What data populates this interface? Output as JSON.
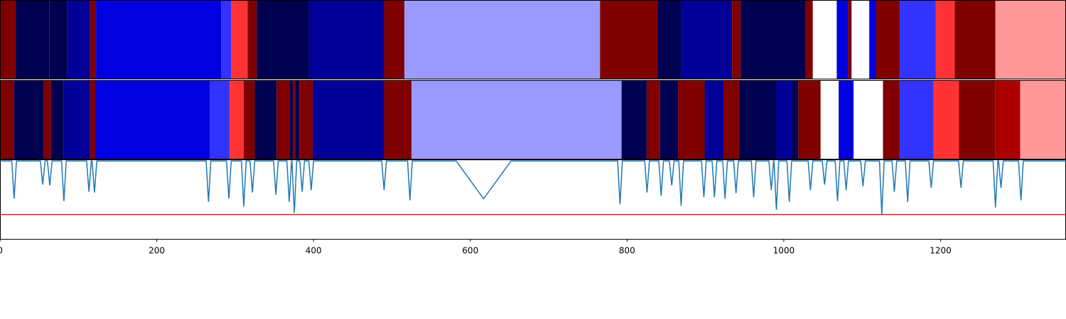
{
  "chart_data": {
    "type": "segments",
    "xlim": [
      0,
      1360
    ],
    "xticks": [
      0,
      200,
      400,
      600,
      800,
      1000,
      1200
    ],
    "ylim": [
      0,
      1
    ],
    "rows": [
      {
        "edges": [
          0,
          20,
          62.6,
          63.5,
          86,
          115,
          122.5,
          282,
          295,
          316,
          327.5,
          394,
          490,
          516,
          765.5,
          839,
          869,
          934,
          945,
          1028,
          1037,
          1067.5,
          1082,
          1086.5,
          1109,
          1117.5,
          1148,
          1194,
          1218,
          1270,
          1360
        ],
        "colors": [
          "#800000",
          "#000050",
          "#800000",
          "#000050",
          "#000099",
          "#800000",
          "#0000e0",
          "#3333ff",
          "#ff3333",
          "#800000",
          "#000050",
          "#000099",
          "#800000",
          "#9999ff",
          "#800000",
          "#000050",
          "#000099",
          "#800000",
          "#000050",
          "#800000",
          "#ffffff",
          "#0000e0",
          "#800000",
          "#ffffff",
          "#0000e0",
          "#800000",
          "#3333ff",
          "#ff3333",
          "#800000",
          "#ff9999"
        ]
      },
      {
        "edges": [
          0,
          18,
          56,
          65,
          81,
          115,
          121.5,
          267.5,
          293,
          311,
          325,
          353,
          370,
          373.5,
          376.5,
          382,
          399,
          490,
          525,
          793,
          825,
          842,
          865,
          899,
          923,
          943,
          990.5,
          1010.5,
          1018.5,
          1047,
          1070,
          1089,
          1126.5,
          1148,
          1191,
          1223.5,
          1270,
          1301.5,
          1360
        ],
        "colors": [
          "#800000",
          "#000050",
          "#800000",
          "#000050",
          "#000099",
          "#800000",
          "#0000e0",
          "#3333ff",
          "#ff3333",
          "#800000",
          "#000050",
          "#800000",
          "#000050",
          "#800000",
          "#000050",
          "#800000",
          "#000099",
          "#800000",
          "#9999ff",
          "#000050",
          "#800000",
          "#000050",
          "#800000",
          "#000099",
          "#800000",
          "#000050",
          "#000099",
          "#000050",
          "#800000",
          "#ffffff",
          "#0000e0",
          "#ffffff",
          "#800000",
          "#3333ff",
          "#ff3333",
          "#800000",
          "#aa0000",
          "#ff9999"
        ]
      }
    ],
    "line": {
      "color": "#1f77b4",
      "x": [
        0,
        15,
        18,
        21,
        51.5,
        54.5,
        57.5,
        60.5,
        63.5,
        66.5,
        78.5,
        81.5,
        84.5,
        110.5,
        113.5,
        116.5,
        117.5,
        120.5,
        123.5,
        263,
        266,
        269,
        289,
        292,
        295,
        308,
        311,
        314,
        319,
        322,
        325,
        349,
        352,
        355,
        366,
        369,
        372,
        372.5,
        375.5,
        378.5,
        382.5,
        385.5,
        388.5,
        394,
        397,
        400,
        487,
        490,
        493,
        520,
        523,
        526,
        582,
        617,
        652,
        788,
        791,
        794,
        822.5,
        825.5,
        828.5,
        840.5,
        843.5,
        846.5,
        854,
        857,
        860,
        866,
        869,
        872,
        895,
        898,
        901,
        908.5,
        911.5,
        914.5,
        922,
        925,
        928,
        936,
        939,
        942,
        958.5,
        961.5,
        964.5,
        981,
        984,
        987,
        987.5,
        990.5,
        993.5,
        1004,
        1007,
        1010,
        1031,
        1034,
        1037,
        1049,
        1052,
        1055,
        1065.5,
        1068.5,
        1071.5,
        1076.5,
        1079.5,
        1082.5,
        1098,
        1101,
        1104,
        1122,
        1125,
        1128,
        1138,
        1141,
        1144,
        1155,
        1158,
        1161,
        1185,
        1188,
        1191,
        1223,
        1226,
        1229,
        1267,
        1270,
        1273,
        1274,
        1277,
        1280,
        1299.5,
        1302.5,
        1305.5,
        1360
      ],
      "values": [
        0.99,
        0.99,
        0.51,
        0.99,
        0.99,
        0.69,
        0.99,
        0.99,
        0.68,
        0.99,
        0.99,
        0.48,
        0.99,
        0.99,
        0.6,
        0.99,
        0.99,
        0.59,
        0.99,
        0.99,
        0.47,
        0.99,
        0.99,
        0.51,
        0.99,
        0.99,
        0.41,
        0.99,
        0.99,
        0.59,
        0.99,
        0.99,
        0.56,
        0.99,
        0.99,
        0.47,
        0.99,
        0.99,
        0.33,
        0.99,
        0.99,
        0.6,
        0.99,
        0.99,
        0.62,
        0.99,
        0.99,
        0.62,
        0.99,
        0.99,
        0.49,
        0.99,
        0.99,
        0.51,
        0.99,
        0.99,
        0.44,
        0.99,
        0.99,
        0.59,
        0.99,
        0.99,
        0.55,
        0.99,
        0.99,
        0.68,
        0.99,
        0.99,
        0.42,
        0.99,
        0.99,
        0.53,
        0.99,
        0.99,
        0.53,
        0.99,
        0.99,
        0.51,
        0.99,
        0.99,
        0.58,
        0.99,
        0.99,
        0.53,
        0.99,
        0.99,
        0.62,
        0.99,
        0.99,
        0.37,
        0.99,
        0.99,
        0.47,
        0.99,
        0.99,
        0.62,
        0.99,
        0.99,
        0.69,
        0.99,
        0.99,
        0.48,
        0.99,
        0.99,
        0.62,
        0.99,
        0.99,
        0.67,
        0.99,
        0.99,
        0.31,
        0.99,
        0.99,
        0.6,
        0.99,
        0.99,
        0.47,
        0.99,
        0.99,
        0.65,
        0.99,
        0.99,
        0.65,
        0.99,
        0.99,
        0.4,
        0.99,
        0.99,
        0.65,
        0.99,
        0.99,
        0.49,
        0.99,
        0.99
      ]
    },
    "threshold": {
      "value": 0.31,
      "color": "#e31a1c"
    }
  }
}
